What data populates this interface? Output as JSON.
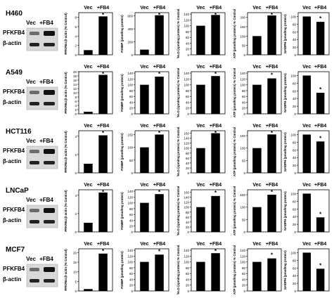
{
  "figure": {
    "rows": [
      {
        "cell_line": "H460",
        "blot": {
          "header_vec": "Vec",
          "header_fb4": "+FB4",
          "bands": [
            "PFKFB4",
            "β-actin"
          ]
        },
        "panels": [
          {
            "ylabel": "PFKFB4:β-actin (% Control)",
            "yticks": [
              0,
              2,
              4,
              6,
              8
            ],
            "ylim": [
              0,
              9
            ]
          },
          {
            "ylabel": "F26BP (pmol/mg protein)",
            "yticks": [
              0,
              200,
              400,
              600
            ],
            "ylim": [
              0,
              650
            ]
          },
          {
            "ylabel": "³H₂O (cpm/mg protein) % Control",
            "yticks": [
              0,
              20,
              40,
              60,
              80,
              100,
              120,
              140
            ],
            "ylim": [
              0,
              145
            ]
          },
          {
            "ylabel": "ATP (pmol/mg protein) % Control",
            "yticks": [
              0,
              50,
              100,
              150,
              200
            ],
            "ylim": [
              0,
              225
            ]
          },
          {
            "ylabel": "NADPH (pmol/mg protein)",
            "yticks": [
              0,
              20,
              40,
              60,
              80,
              100
            ],
            "ylim": [
              0,
              110
            ]
          }
        ]
      },
      {
        "cell_line": "A549",
        "blot": {
          "header_vec": "Vec",
          "header_fb4": "+FB4",
          "bands": [
            "PFKFB4",
            "β-actin"
          ]
        },
        "panels": [
          {
            "ylabel": "PFKFB4:β-actin (% Control)",
            "yticks": [
              0,
              2,
              4,
              6,
              8,
              10,
              12,
              14,
              16,
              18,
              20
            ],
            "ylim": [
              0,
              20
            ]
          },
          {
            "ylabel": "F26BP (pmol/mg protein)",
            "yticks": [
              0,
              20,
              40,
              60,
              80,
              100,
              120,
              140
            ],
            "ylim": [
              0,
              145
            ]
          },
          {
            "ylabel": "³H₂O (cpm/mg protein) % Control",
            "yticks": [
              0,
              20,
              40,
              60,
              80,
              100,
              120,
              140
            ],
            "ylim": [
              0,
              145
            ]
          },
          {
            "ylabel": "ATP (pmol/mg protein) % Control",
            "yticks": [
              0,
              20,
              40,
              60,
              80,
              100,
              120,
              140
            ],
            "ylim": [
              0,
              145
            ]
          },
          {
            "ylabel": "NADPH (pmol/mg protein)",
            "yticks": [
              0,
              20,
              40,
              60,
              80,
              100
            ],
            "ylim": [
              0,
              110
            ]
          }
        ]
      },
      {
        "cell_line": "HCT116",
        "blot": {
          "header_vec": "Vec",
          "header_fb4": "+FB4",
          "bands": [
            "PFKFB4",
            "β-actin"
          ]
        },
        "panels": [
          {
            "ylabel": "PFKFB4:β-actin (% Control)",
            "yticks": [
              0,
              2,
              4
            ],
            "ylim": [
              0,
              4.6
            ]
          },
          {
            "ylabel": "F26BP (pmol/mg protein)",
            "yticks": [
              0,
              50,
              100,
              150
            ],
            "ylim": [
              0,
              165
            ]
          },
          {
            "ylabel": "³H₂O (cpm/mg protein) % Control",
            "yticks": [
              0,
              20,
              40,
              60,
              80,
              100,
              120,
              140,
              160
            ],
            "ylim": [
              0,
              170
            ]
          },
          {
            "ylabel": "ATP (pmol/mg protein) % Control",
            "yticks": [
              0,
              50,
              100,
              150
            ],
            "ylim": [
              0,
              170
            ]
          },
          {
            "ylabel": "NADPH (pmol/mg protein)",
            "yticks": [
              0,
              20,
              40,
              60,
              80,
              100
            ],
            "ylim": [
              0,
              110
            ]
          }
        ]
      },
      {
        "cell_line": "LNCaP",
        "blot": {
          "header_vec": "Vec",
          "header_fb4": "+FB4",
          "bands": [
            "PFKFB4",
            "β-actin"
          ]
        },
        "panels": [
          {
            "ylabel": "PFKFB4:β-actin (% Control)",
            "yticks": [
              0,
              2,
              4
            ],
            "ylim": [
              0,
              4.6
            ]
          },
          {
            "ylabel": "F26BP (pmol/mg protein)",
            "yticks": [
              0,
              20,
              40,
              60,
              80,
              100,
              120,
              140
            ],
            "ylim": [
              0,
              145
            ]
          },
          {
            "ylabel": "³H₂O (cpm/mg protein) % Control",
            "yticks": [
              0,
              20,
              40,
              60,
              80,
              100,
              120,
              140,
              160
            ],
            "ylim": [
              0,
              170
            ]
          },
          {
            "ylabel": "ATP (pmol/mg protein) % Control",
            "yticks": [
              0,
              50,
              100,
              150
            ],
            "ylim": [
              0,
              170
            ]
          },
          {
            "ylabel": "NADPH (pmol/mg protein)",
            "yticks": [
              0,
              20,
              40,
              60,
              80,
              100
            ],
            "ylim": [
              0,
              110
            ]
          }
        ]
      },
      {
        "cell_line": "MCF7",
        "blot": {
          "header_vec": "Vec",
          "header_fb4": "+FB4",
          "bands": [
            "PFKFB4",
            "β-actin"
          ]
        },
        "panels": [
          {
            "ylabel": "PFKFB4:β-actin (% Control)",
            "yticks": [
              0,
              5,
              10,
              15,
              20
            ],
            "ylim": [
              0,
              22
            ]
          },
          {
            "ylabel": "F26BP (pmol/mg protein)",
            "yticks": [
              0,
              20,
              40,
              60,
              80,
              100,
              120,
              140
            ],
            "ylim": [
              0,
              145
            ]
          },
          {
            "ylabel": "³H₂O (cpm/mg protein) % Control",
            "yticks": [
              0,
              20,
              40,
              60,
              80,
              100,
              120,
              140
            ],
            "ylim": [
              0,
              145
            ]
          },
          {
            "ylabel": "ATP (pmol/mg protein) % Control",
            "yticks": [
              0,
              20,
              40,
              60,
              80,
              100,
              120,
              140
            ],
            "ylim": [
              0,
              145
            ]
          },
          {
            "ylabel": "NADPH (pmol/mg protein)",
            "yticks": [
              0,
              20,
              40,
              60,
              80,
              100
            ],
            "ylim": [
              0,
              110
            ]
          }
        ]
      }
    ],
    "header": {
      "vec": "Vec",
      "fb4": "+FB4"
    },
    "significance_marker": "*",
    "bar_color": "#000000"
  },
  "chart_data": [
    {
      "type": "bar",
      "panel": "H460 PFKFB4:β-actin",
      "categories": [
        "Vec",
        "+FB4"
      ],
      "values": [
        1,
        8.2
      ],
      "ylim": [
        0,
        9
      ]
    },
    {
      "type": "bar",
      "panel": "H460 F26BP",
      "categories": [
        "Vec",
        "+FB4"
      ],
      "values": [
        80,
        610
      ],
      "ylim": [
        0,
        650
      ]
    },
    {
      "type": "bar",
      "panel": "H460 3H2O",
      "categories": [
        "Vec",
        "+FB4"
      ],
      "values": [
        100,
        137
      ],
      "ylim": [
        0,
        145
      ]
    },
    {
      "type": "bar",
      "panel": "H460 ATP",
      "categories": [
        "Vec",
        "+FB4"
      ],
      "values": [
        100,
        210
      ],
      "ylim": [
        0,
        225
      ]
    },
    {
      "type": "bar",
      "panel": "H460 NADPH",
      "categories": [
        "Vec",
        "+FB4"
      ],
      "values": [
        100,
        86
      ],
      "ylim": [
        0,
        110
      ]
    },
    {
      "type": "bar",
      "panel": "A549 PFKFB4:β-actin",
      "categories": [
        "Vec",
        "+FB4"
      ],
      "values": [
        1,
        18.5
      ],
      "ylim": [
        0,
        20
      ]
    },
    {
      "type": "bar",
      "panel": "A549 F26BP",
      "categories": [
        "Vec",
        "+FB4"
      ],
      "values": [
        100,
        128
      ],
      "ylim": [
        0,
        145
      ]
    },
    {
      "type": "bar",
      "panel": "A549 3H2O",
      "categories": [
        "Vec",
        "+FB4"
      ],
      "values": [
        100,
        130
      ],
      "ylim": [
        0,
        145
      ]
    },
    {
      "type": "bar",
      "panel": "A549 ATP",
      "categories": [
        "Vec",
        "+FB4"
      ],
      "values": [
        100,
        122
      ],
      "ylim": [
        0,
        145
      ]
    },
    {
      "type": "bar",
      "panel": "A549 NADPH",
      "categories": [
        "Vec",
        "+FB4"
      ],
      "values": [
        100,
        55
      ],
      "ylim": [
        0,
        110
      ]
    },
    {
      "type": "bar",
      "panel": "HCT116 PFKFB4:β-actin",
      "categories": [
        "Vec",
        "+FB4"
      ],
      "values": [
        1,
        4.1
      ],
      "ylim": [
        0,
        4.6
      ]
    },
    {
      "type": "bar",
      "panel": "HCT116 F26BP",
      "categories": [
        "Vec",
        "+FB4"
      ],
      "values": [
        100,
        150
      ],
      "ylim": [
        0,
        165
      ]
    },
    {
      "type": "bar",
      "panel": "HCT116 3H2O",
      "categories": [
        "Vec",
        "+FB4"
      ],
      "values": [
        100,
        160
      ],
      "ylim": [
        0,
        170
      ]
    },
    {
      "type": "bar",
      "panel": "HCT116 ATP",
      "categories": [
        "Vec",
        "+FB4"
      ],
      "values": [
        100,
        155
      ],
      "ylim": [
        0,
        170
      ]
    },
    {
      "type": "bar",
      "panel": "HCT116 NADPH",
      "categories": [
        "Vec",
        "+FB4"
      ],
      "values": [
        100,
        82
      ],
      "ylim": [
        0,
        110
      ]
    },
    {
      "type": "bar",
      "panel": "LNCaP PFKFB4:β-actin",
      "categories": [
        "Vec",
        "+FB4"
      ],
      "values": [
        1,
        4.3
      ],
      "ylim": [
        0,
        4.6
      ]
    },
    {
      "type": "bar",
      "panel": "LNCaP F26BP",
      "categories": [
        "Vec",
        "+FB4"
      ],
      "values": [
        100,
        130
      ],
      "ylim": [
        0,
        145
      ]
    },
    {
      "type": "bar",
      "panel": "LNCaP 3H2O",
      "categories": [
        "Vec",
        "+FB4"
      ],
      "values": [
        100,
        145
      ],
      "ylim": [
        0,
        170
      ]
    },
    {
      "type": "bar",
      "panel": "LNCaP ATP",
      "categories": [
        "Vec",
        "+FB4"
      ],
      "values": [
        100,
        150
      ],
      "ylim": [
        0,
        170
      ]
    },
    {
      "type": "bar",
      "panel": "LNCaP NADPH",
      "categories": [
        "Vec",
        "+FB4"
      ],
      "values": [
        100,
        38
      ],
      "ylim": [
        0,
        110
      ]
    },
    {
      "type": "bar",
      "panel": "MCF7 PFKFB4:β-actin",
      "categories": [
        "Vec",
        "+FB4"
      ],
      "values": [
        1,
        19.5
      ],
      "ylim": [
        0,
        22
      ]
    },
    {
      "type": "bar",
      "panel": "MCF7 F26BP",
      "categories": [
        "Vec",
        "+FB4"
      ],
      "values": [
        100,
        125
      ],
      "ylim": [
        0,
        145
      ]
    },
    {
      "type": "bar",
      "panel": "MCF7 3H2O",
      "categories": [
        "Vec",
        "+FB4"
      ],
      "values": [
        100,
        130
      ],
      "ylim": [
        0,
        145
      ]
    },
    {
      "type": "bar",
      "panel": "MCF7 ATP",
      "categories": [
        "Vec",
        "+FB4"
      ],
      "values": [
        100,
        112
      ],
      "ylim": [
        0,
        145
      ]
    },
    {
      "type": "bar",
      "panel": "MCF7 NADPH",
      "categories": [
        "Vec",
        "+FB4"
      ],
      "values": [
        100,
        58
      ],
      "ylim": [
        0,
        110
      ]
    }
  ]
}
